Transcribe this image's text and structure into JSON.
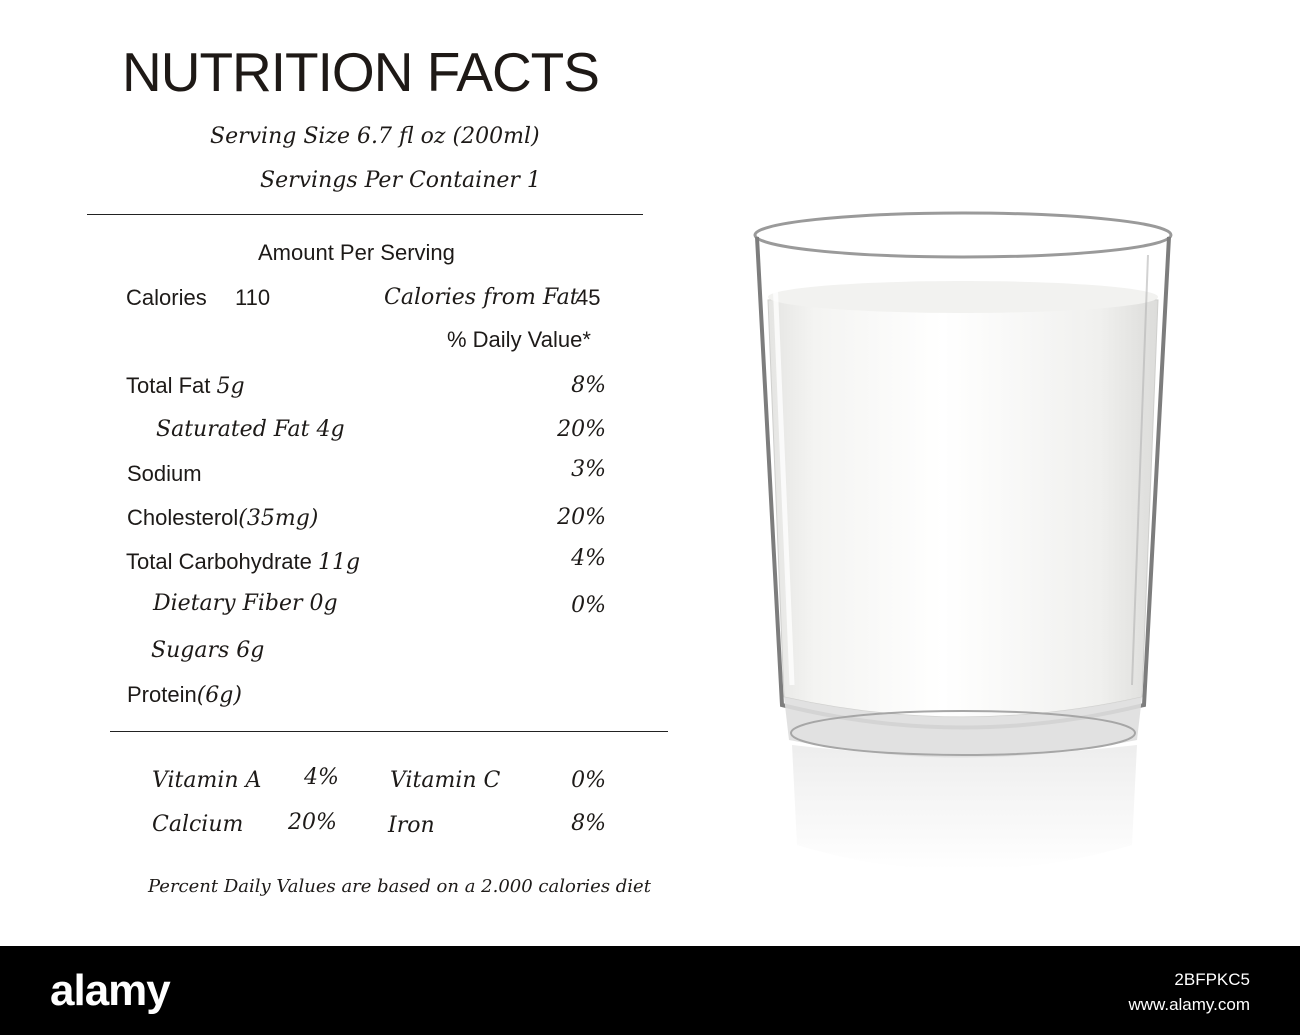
{
  "label": {
    "title": "NUTRITION FACTS",
    "serving_size": "Serving Size 6.7 fl oz (200ml)",
    "servings_per_container": "Servings Per Container 1",
    "amount_per_serving": "Amount Per Serving",
    "calories_label": "Calories",
    "calories_value": "110",
    "calories_from_fat_label": "Calories from Fat",
    "calories_from_fat_value": "45",
    "daily_value_header": "% Daily Value*",
    "nutrients": [
      {
        "name": "Total Fat",
        "amount": "5g",
        "pct": "8%"
      },
      {
        "name": "Saturated Fat",
        "amount": "4g",
        "pct": "20%"
      },
      {
        "name": "Sodium",
        "amount": "",
        "pct": "3%"
      },
      {
        "name": "Cholesterol",
        "amount": "(35mg)",
        "pct": "20%"
      },
      {
        "name": "Total Carbohydrate",
        "amount": "11g",
        "pct": "4%"
      },
      {
        "name": "Dietary Fiber",
        "amount": "0g",
        "pct": "0%"
      },
      {
        "name": "Sugars",
        "amount": "6g",
        "pct": ""
      },
      {
        "name": "Protein",
        "amount": "(6g)",
        "pct": ""
      }
    ],
    "vitamins": [
      {
        "name": "Vitamin A",
        "pct": "4%"
      },
      {
        "name": "Vitamin C",
        "pct": "0%"
      },
      {
        "name": "Calcium",
        "pct": "20%"
      },
      {
        "name": "Iron",
        "pct": "8%"
      }
    ],
    "footnote": "Percent Daily Values are based on a 2.000 calories diet"
  },
  "stock": {
    "logo": "alamy",
    "image_id": "2BFPKC5",
    "url": "www.alamy.com"
  },
  "colors": {
    "text": "#1d1a18",
    "milk": "#f7f7f5",
    "bar": "#000000"
  }
}
